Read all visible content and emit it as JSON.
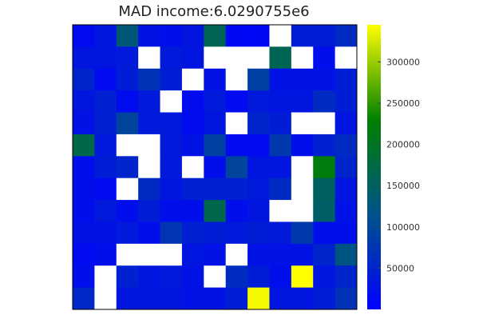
{
  "chart_data": {
    "type": "heatmap",
    "title": "MAD income:6.0290755e6",
    "xlabel": "",
    "ylabel": "",
    "colorbar": {
      "ticks": [
        50000,
        100000,
        150000,
        200000,
        250000,
        300000
      ],
      "tick_labels": [
        "50000",
        "100000",
        "150000",
        "200000",
        "250000",
        "300000"
      ],
      "min": 0,
      "max": 345000,
      "colormap": [
        "#0000ff",
        "#00528a",
        "#008000",
        "#ffff00"
      ]
    },
    "grid": false,
    "missing_color": "#ffffff",
    "values": [
      [
        15000,
        30000,
        130000,
        25000,
        20000,
        30000,
        160000,
        10000,
        10000,
        null,
        40000,
        40000,
        60000
      ],
      [
        30000,
        30000,
        35000,
        null,
        35000,
        30000,
        null,
        null,
        null,
        160000,
        null,
        20000,
        null
      ],
      [
        50000,
        15000,
        40000,
        70000,
        40000,
        null,
        25000,
        null,
        90000,
        25000,
        25000,
        25000,
        40000
      ],
      [
        30000,
        45000,
        15000,
        35000,
        null,
        15000,
        35000,
        15000,
        35000,
        30000,
        30000,
        60000,
        40000
      ],
      [
        25000,
        45000,
        95000,
        35000,
        35000,
        15000,
        30000,
        null,
        50000,
        40000,
        null,
        null,
        30000
      ],
      [
        170000,
        35000,
        null,
        null,
        35000,
        25000,
        90000,
        15000,
        15000,
        80000,
        20000,
        45000,
        60000
      ],
      [
        20000,
        40000,
        50000,
        null,
        35000,
        null,
        20000,
        95000,
        30000,
        30000,
        null,
        220000,
        50000
      ],
      [
        20000,
        15000,
        null,
        60000,
        30000,
        45000,
        45000,
        45000,
        35000,
        60000,
        null,
        150000,
        30000
      ],
      [
        20000,
        35000,
        20000,
        40000,
        20000,
        20000,
        165000,
        20000,
        30000,
        null,
        null,
        145000,
        25000
      ],
      [
        25000,
        25000,
        35000,
        20000,
        75000,
        45000,
        40000,
        35000,
        40000,
        35000,
        80000,
        20000,
        20000
      ],
      [
        15000,
        20000,
        null,
        null,
        null,
        30000,
        25000,
        null,
        25000,
        25000,
        25000,
        50000,
        120000
      ],
      [
        20000,
        null,
        45000,
        30000,
        35000,
        25000,
        null,
        60000,
        40000,
        20000,
        345000,
        30000,
        50000
      ],
      [
        55000,
        null,
        30000,
        30000,
        30000,
        25000,
        25000,
        40000,
        340000,
        30000,
        30000,
        40000,
        70000
      ]
    ]
  }
}
